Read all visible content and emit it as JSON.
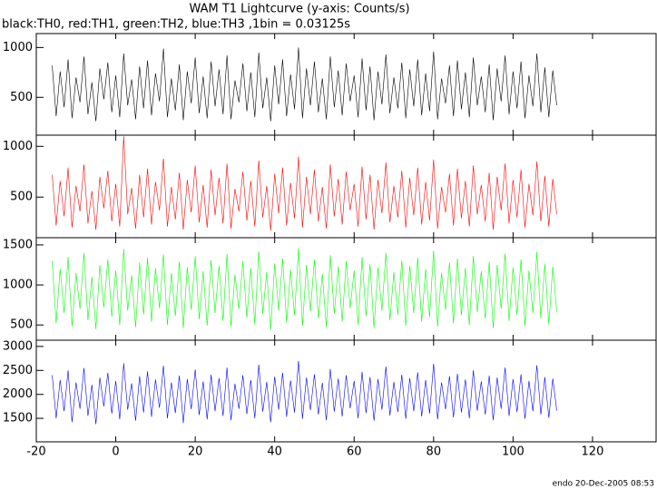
{
  "title": "WAM T1 Lightcurve (y-axis: Counts/s)",
  "subtitle": "black:TH0, red:TH1, green:TH2, blue:TH3 ,1bin = 0.03125s",
  "footer": "endo 20-Dec-2005 08:53",
  "chart_data": [
    {
      "type": "line",
      "xlim": [
        -20,
        136
      ],
      "ylim": [
        120,
        1140
      ],
      "yticks": [
        500,
        1000
      ],
      "x": [
        -16,
        -15,
        -14,
        -13,
        -12,
        -11,
        -10,
        -9,
        -8,
        -7,
        -6,
        -5,
        -4,
        -3,
        -2,
        -1,
        0,
        1,
        2,
        3,
        4,
        5,
        6,
        7,
        8,
        9,
        10,
        11,
        12,
        13,
        14,
        15,
        16,
        17,
        18,
        19,
        20,
        21,
        22,
        23,
        24,
        25,
        26,
        27,
        28,
        29,
        30,
        31,
        32,
        33,
        34,
        35,
        36,
        37,
        38,
        39,
        40,
        41,
        42,
        43,
        44,
        45,
        46,
        47,
        48,
        49,
        50,
        51,
        52,
        53,
        54,
        55,
        56,
        57,
        58,
        59,
        60,
        61,
        62,
        63,
        64,
        65,
        66,
        67,
        68,
        69,
        70,
        71,
        72,
        73,
        74,
        75,
        76,
        77,
        78,
        79,
        80,
        81,
        82,
        83,
        84,
        85,
        86,
        87,
        88,
        89,
        90,
        91,
        92,
        93,
        94,
        95,
        96,
        97,
        98,
        99,
        100,
        101,
        102,
        103,
        104,
        105,
        106,
        107,
        108,
        109,
        110,
        111
      ],
      "series": [
        {
          "name": "TH0",
          "color": "#000000",
          "values": [
            820,
            310,
            760,
            400,
            880,
            290,
            700,
            450,
            910,
            330,
            650,
            260,
            790,
            480,
            850,
            350,
            720,
            300,
            940,
            420,
            680,
            280,
            810,
            390,
            870,
            320,
            740,
            460,
            990,
            300,
            690,
            370,
            830,
            270,
            760,
            440,
            900,
            340,
            710,
            290,
            860,
            410,
            780,
            330,
            920,
            280,
            670,
            450,
            840,
            360,
            750,
            300,
            950,
            390,
            700,
            260,
            820,
            430,
            880,
            310,
            730,
            380,
            1000,
            290,
            790,
            420,
            860,
            350,
            690,
            280,
            910,
            400,
            770,
            320,
            840,
            460,
            720,
            300,
            890,
            370,
            810,
            270,
            760,
            430,
            930,
            340,
            700,
            390,
            850,
            290,
            780,
            410,
            880,
            320,
            740,
            360,
            960,
            280,
            690,
            440,
            820,
            310,
            870,
            380,
            750,
            300,
            900,
            420,
            710,
            350,
            830,
            270,
            790,
            460,
            920,
            330,
            760,
            390,
            860,
            290,
            720,
            410,
            940,
            350,
            800,
            300,
            770,
            420
          ]
        }
      ]
    },
    {
      "type": "line",
      "xlim": [
        -20,
        136
      ],
      "ylim": [
        100,
        1110
      ],
      "yticks": [
        500,
        1000
      ],
      "x": [
        -16,
        -15,
        -14,
        -13,
        -12,
        -11,
        -10,
        -9,
        -8,
        -7,
        -6,
        -5,
        -4,
        -3,
        -2,
        -1,
        0,
        1,
        2,
        3,
        4,
        5,
        6,
        7,
        8,
        9,
        10,
        11,
        12,
        13,
        14,
        15,
        16,
        17,
        18,
        19,
        20,
        21,
        22,
        23,
        24,
        25,
        26,
        27,
        28,
        29,
        30,
        31,
        32,
        33,
        34,
        35,
        36,
        37,
        38,
        39,
        40,
        41,
        42,
        43,
        44,
        45,
        46,
        47,
        48,
        49,
        50,
        51,
        52,
        53,
        54,
        55,
        56,
        57,
        58,
        59,
        60,
        61,
        62,
        63,
        64,
        65,
        66,
        67,
        68,
        69,
        70,
        71,
        72,
        73,
        74,
        75,
        76,
        77,
        78,
        79,
        80,
        81,
        82,
        83,
        84,
        85,
        86,
        87,
        88,
        89,
        90,
        91,
        92,
        93,
        94,
        95,
        96,
        97,
        98,
        99,
        100,
        101,
        102,
        103,
        104,
        105,
        106,
        107,
        108,
        109,
        110,
        111
      ],
      "series": [
        {
          "name": "TH1",
          "color": "#ff0000",
          "values": [
            720,
            220,
            660,
            310,
            790,
            200,
            610,
            360,
            820,
            240,
            560,
            180,
            700,
            390,
            760,
            260,
            630,
            210,
            1100,
            330,
            590,
            190,
            720,
            300,
            780,
            230,
            650,
            370,
            880,
            210,
            600,
            280,
            740,
            180,
            670,
            350,
            810,
            250,
            620,
            200,
            770,
            320,
            690,
            240,
            830,
            190,
            580,
            360,
            750,
            270,
            660,
            210,
            860,
            300,
            610,
            170,
            730,
            340,
            790,
            220,
            640,
            290,
            900,
            200,
            700,
            330,
            770,
            260,
            600,
            190,
            820,
            310,
            680,
            230,
            750,
            370,
            630,
            210,
            800,
            280,
            720,
            180,
            670,
            340,
            840,
            250,
            610,
            300,
            760,
            200,
            690,
            320,
            790,
            230,
            650,
            270,
            870,
            190,
            600,
            350,
            730,
            220,
            780,
            290,
            660,
            210,
            810,
            330,
            620,
            260,
            740,
            180,
            700,
            370,
            830,
            240,
            670,
            300,
            770,
            200,
            630,
            320,
            850,
            260,
            710,
            210,
            680,
            330
          ]
        }
      ]
    },
    {
      "type": "line",
      "xlim": [
        -20,
        136
      ],
      "ylim": [
        310,
        1590
      ],
      "yticks": [
        500,
        1000,
        1500
      ],
      "x": [
        -16,
        -15,
        -14,
        -13,
        -12,
        -11,
        -10,
        -9,
        -8,
        -7,
        -6,
        -5,
        -4,
        -3,
        -2,
        -1,
        0,
        1,
        2,
        3,
        4,
        5,
        6,
        7,
        8,
        9,
        10,
        11,
        12,
        13,
        14,
        15,
        16,
        17,
        18,
        19,
        20,
        21,
        22,
        23,
        24,
        25,
        26,
        27,
        28,
        29,
        30,
        31,
        32,
        33,
        34,
        35,
        36,
        37,
        38,
        39,
        40,
        41,
        42,
        43,
        44,
        45,
        46,
        47,
        48,
        49,
        50,
        51,
        52,
        53,
        54,
        55,
        56,
        57,
        58,
        59,
        60,
        61,
        62,
        63,
        64,
        65,
        66,
        67,
        68,
        69,
        70,
        71,
        72,
        73,
        74,
        75,
        76,
        77,
        78,
        79,
        80,
        81,
        82,
        83,
        84,
        85,
        86,
        87,
        88,
        89,
        90,
        91,
        92,
        93,
        94,
        95,
        96,
        97,
        98,
        99,
        100,
        101,
        102,
        103,
        104,
        105,
        106,
        107,
        108,
        109,
        110,
        111
      ],
      "series": [
        {
          "name": "TH2",
          "color": "#00ff00",
          "values": [
            1300,
            520,
            1200,
            650,
            1350,
            480,
            1150,
            700,
            1400,
            560,
            1100,
            450,
            1250,
            720,
            1320,
            600,
            1180,
            500,
            1450,
            680,
            1120,
            470,
            1280,
            630,
            1340,
            540,
            1210,
            710,
            1380,
            500,
            1150,
            610,
            1290,
            460,
            1220,
            690,
            1360,
            570,
            1170,
            490,
            1310,
            650,
            1240,
            550,
            1390,
            480,
            1130,
            700,
            1300,
            590,
            1210,
            510,
            1420,
            640,
            1160,
            440,
            1270,
            680,
            1330,
            530,
            1190,
            620,
            1460,
            490,
            1250,
            670,
            1320,
            580,
            1140,
            470,
            1370,
            640,
            1230,
            540,
            1300,
            710,
            1180,
            500,
            1350,
            610,
            1260,
            460,
            1220,
            680,
            1400,
            560,
            1160,
            630,
            1310,
            490,
            1240,
            650,
            1340,
            540,
            1200,
            600,
            1430,
            480,
            1150,
            690,
            1280,
            520,
            1330,
            620,
            1210,
            500,
            1360,
            660,
            1170,
            580,
            1290,
            460,
            1250,
            700,
            1390,
            550,
            1220,
            630,
            1320,
            490,
            1180,
            650,
            1410,
            580,
            1260,
            510,
            1230,
            660
          ]
        }
      ]
    },
    {
      "type": "line",
      "xlim": [
        -20,
        136
      ],
      "ylim": [
        1010,
        3130
      ],
      "yticks": [
        1500,
        2000,
        2500,
        3000
      ],
      "xticks": [
        -20,
        0,
        20,
        40,
        60,
        80,
        100,
        120
      ],
      "x": [
        -16,
        -15,
        -14,
        -13,
        -12,
        -11,
        -10,
        -9,
        -8,
        -7,
        -6,
        -5,
        -4,
        -3,
        -2,
        -1,
        0,
        1,
        2,
        3,
        4,
        5,
        6,
        7,
        8,
        9,
        10,
        11,
        12,
        13,
        14,
        15,
        16,
        17,
        18,
        19,
        20,
        21,
        22,
        23,
        24,
        25,
        26,
        27,
        28,
        29,
        30,
        31,
        32,
        33,
        34,
        35,
        36,
        37,
        38,
        39,
        40,
        41,
        42,
        43,
        44,
        45,
        46,
        47,
        48,
        49,
        50,
        51,
        52,
        53,
        54,
        55,
        56,
        57,
        58,
        59,
        60,
        61,
        62,
        63,
        64,
        65,
        66,
        67,
        68,
        69,
        70,
        71,
        72,
        73,
        74,
        75,
        76,
        77,
        78,
        79,
        80,
        81,
        82,
        83,
        84,
        85,
        86,
        87,
        88,
        89,
        90,
        91,
        92,
        93,
        94,
        95,
        96,
        97,
        98,
        99,
        100,
        101,
        102,
        103,
        104,
        105,
        106,
        107,
        108,
        109,
        110,
        111
      ],
      "series": [
        {
          "name": "TH3",
          "color": "#0000ff",
          "values": [
            2400,
            1500,
            2300,
            1650,
            2500,
            1420,
            2250,
            1700,
            2550,
            1550,
            2200,
            1380,
            2350,
            1750,
            2450,
            1600,
            2280,
            1480,
            2650,
            1680,
            2230,
            1450,
            2380,
            1620,
            2480,
            1530,
            2310,
            1720,
            2600,
            1500,
            2250,
            1610,
            2390,
            1400,
            2320,
            1690,
            2520,
            1570,
            2270,
            1480,
            2410,
            1650,
            2340,
            1550,
            2560,
            1460,
            2220,
            1700,
            2400,
            1590,
            2300,
            1500,
            2620,
            1640,
            2260,
            1420,
            2370,
            1680,
            2450,
            1530,
            2290,
            1620,
            2700,
            1490,
            2350,
            1670,
            2420,
            1580,
            2240,
            1460,
            2530,
            1640,
            2330,
            1540,
            2400,
            1710,
            2280,
            1500,
            2470,
            1610,
            2360,
            1450,
            2320,
            1680,
            2580,
            1560,
            2260,
            1630,
            2410,
            1490,
            2340,
            1650,
            2460,
            1540,
            2300,
            1600,
            2640,
            1480,
            2250,
            1690,
            2380,
            1520,
            2430,
            1620,
            2310,
            1500,
            2500,
            1660,
            2270,
            1580,
            2390,
            1460,
            2350,
            1700,
            2560,
            1550,
            2320,
            1630,
            2420,
            1490,
            2280,
            1650,
            2610,
            1580,
            2360,
            1510,
            2330,
            1660
          ]
        }
      ]
    }
  ]
}
